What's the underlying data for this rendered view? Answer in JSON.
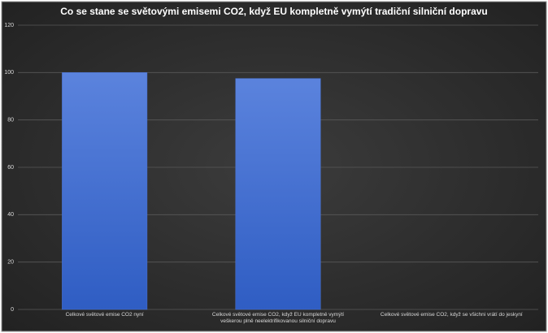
{
  "chart_data": {
    "type": "bar",
    "title": "Co se stane se světovými emisemi CO2, když EU kompletně vymýtí tradiční silniční dopravu",
    "categories": [
      "Celkové světové emise CO2 nyní",
      "Celkové světové emise CO2, když EU kompletně vymýtí veškerou plně neelektrifikovanou silniční dopravu",
      "Celkové světové emise CO2, když se všichni vrátí do jeskyní"
    ],
    "values": [
      100,
      97.5,
      0
    ],
    "color": "#4a74d6",
    "ylim": [
      0,
      120
    ],
    "yticks": [
      0,
      20,
      40,
      60,
      80,
      100,
      120
    ],
    "grid": true
  }
}
